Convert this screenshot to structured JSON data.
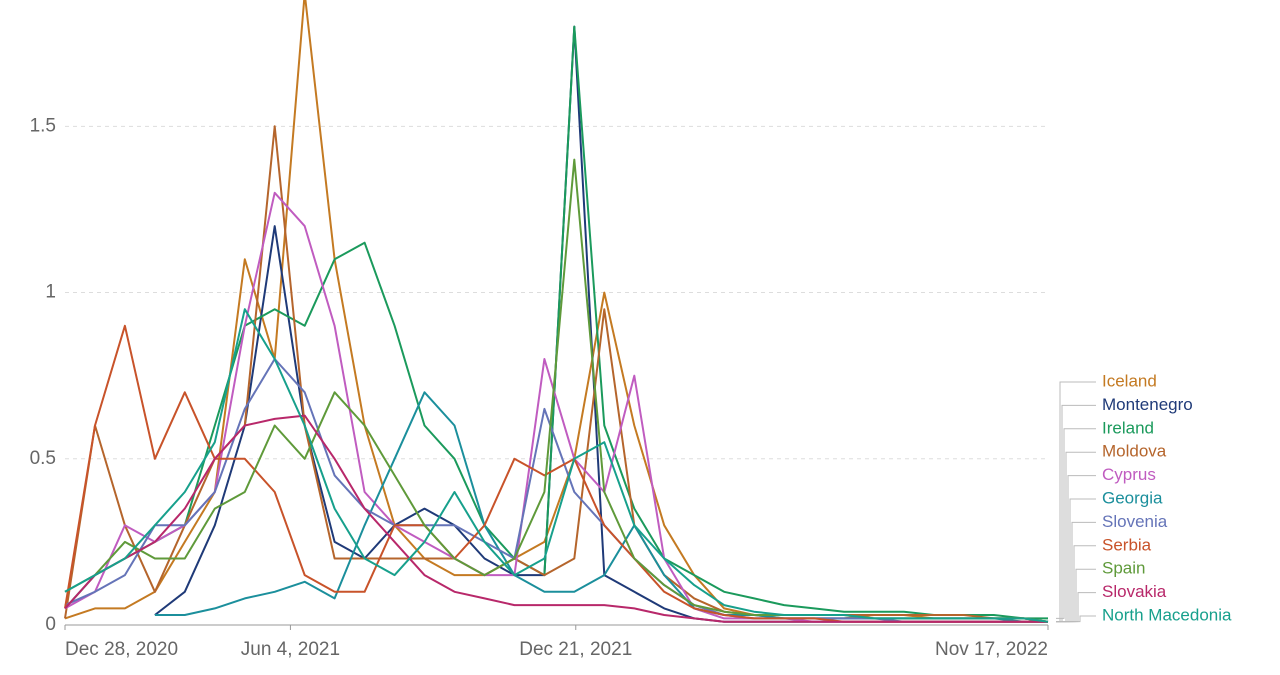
{
  "chart_data": {
    "type": "line",
    "x": [
      "2020-12-28",
      "2021-01-18",
      "2021-02-08",
      "2021-03-01",
      "2021-03-22",
      "2021-04-12",
      "2021-05-03",
      "2021-05-24",
      "2021-06-14",
      "2021-07-05",
      "2021-07-26",
      "2021-08-16",
      "2021-09-06",
      "2021-09-27",
      "2021-10-18",
      "2021-11-08",
      "2021-11-29",
      "2021-12-20",
      "2022-01-10",
      "2022-01-31",
      "2022-02-21",
      "2022-03-14",
      "2022-04-04",
      "2022-04-25",
      "2022-05-16",
      "2022-06-06",
      "2022-06-27",
      "2022-07-18",
      "2022-08-08",
      "2022-08-29",
      "2022-09-19",
      "2022-10-10",
      "2022-10-31",
      "2022-11-17"
    ],
    "xlim": [
      "2020-12-28",
      "2022-11-17"
    ],
    "xticks": [
      {
        "value": "2020-12-28",
        "label": "Dec 28, 2020"
      },
      {
        "value": "2021-06-04",
        "label": "Jun 4, 2021"
      },
      {
        "value": "2021-12-21",
        "label": "Dec 21, 2021"
      },
      {
        "value": "2022-11-17",
        "label": "Nov 17, 2022"
      }
    ],
    "ylim": [
      0,
      1.88
    ],
    "yticks": [
      0,
      0.5,
      1,
      1.5
    ],
    "grid": true,
    "series": [
      {
        "name": "Iceland",
        "color": "#c47a22",
        "values": [
          0.02,
          0.05,
          0.05,
          0.1,
          0.25,
          0.4,
          1.1,
          0.8,
          1.9,
          1.1,
          0.6,
          0.3,
          0.2,
          0.15,
          0.15,
          0.2,
          0.25,
          0.5,
          1.0,
          0.6,
          0.3,
          0.15,
          0.05,
          0.03,
          0.02,
          0.02,
          0.02,
          0.03,
          0.03,
          0.02,
          0.02,
          0.02,
          0.02,
          0.01
        ]
      },
      {
        "name": "Montenegro",
        "color": "#1f3a78",
        "values": [
          null,
          null,
          null,
          0.03,
          0.1,
          0.3,
          0.6,
          1.2,
          0.6,
          0.25,
          0.2,
          0.3,
          0.35,
          0.3,
          0.2,
          0.15,
          0.15,
          1.8,
          0.15,
          0.1,
          0.05,
          0.02,
          0.01,
          0.01,
          0.01,
          0.01,
          0.01,
          0.01,
          0.01,
          0.01,
          0.01,
          0.01,
          0.01,
          0.01
        ]
      },
      {
        "name": "Ireland",
        "color": "#1b9a5c",
        "values": [
          0.05,
          0.15,
          0.2,
          0.25,
          0.3,
          0.6,
          0.9,
          0.95,
          0.9,
          1.1,
          1.15,
          0.9,
          0.6,
          0.5,
          0.3,
          0.2,
          0.15,
          1.8,
          0.6,
          0.35,
          0.2,
          0.15,
          0.1,
          0.08,
          0.06,
          0.05,
          0.04,
          0.04,
          0.04,
          0.03,
          0.03,
          0.03,
          0.02,
          0.02
        ]
      },
      {
        "name": "Moldova",
        "color": "#b5652c",
        "values": [
          0.02,
          0.6,
          0.3,
          0.1,
          0.3,
          0.5,
          0.6,
          1.5,
          0.6,
          0.2,
          0.2,
          0.2,
          0.2,
          0.2,
          0.15,
          0.2,
          0.15,
          0.2,
          0.95,
          0.3,
          0.15,
          0.08,
          0.04,
          0.03,
          0.03,
          0.03,
          0.03,
          0.03,
          0.03,
          0.03,
          0.03,
          0.02,
          0.02,
          0.01
        ]
      },
      {
        "name": "Cyprus",
        "color": "#c05cc0",
        "values": [
          0.05,
          0.1,
          0.3,
          0.25,
          0.3,
          0.4,
          0.9,
          1.3,
          1.2,
          0.9,
          0.4,
          0.3,
          0.25,
          0.2,
          0.15,
          0.15,
          0.8,
          0.5,
          0.4,
          0.75,
          0.2,
          0.05,
          0.02,
          0.02,
          0.02,
          0.01,
          0.01,
          0.01,
          0.01,
          0.01,
          0.01,
          0.01,
          0.01,
          0.01
        ]
      },
      {
        "name": "Georgia",
        "color": "#1b8f9c",
        "values": [
          null,
          null,
          null,
          0.03,
          0.03,
          0.05,
          0.08,
          0.1,
          0.13,
          0.08,
          0.3,
          0.5,
          0.7,
          0.6,
          0.3,
          0.15,
          0.1,
          0.1,
          0.15,
          0.3,
          0.15,
          0.05,
          0.03,
          0.03,
          0.02,
          0.02,
          0.02,
          0.02,
          0.02,
          0.02,
          0.02,
          0.02,
          0.01,
          0.01
        ]
      },
      {
        "name": "Slovenia",
        "color": "#6574b8",
        "values": [
          0.06,
          0.1,
          0.15,
          0.3,
          0.3,
          0.4,
          0.65,
          0.8,
          0.7,
          0.45,
          0.35,
          0.3,
          0.3,
          0.3,
          0.25,
          0.2,
          0.65,
          0.4,
          0.3,
          0.2,
          0.12,
          0.06,
          0.03,
          0.02,
          0.02,
          0.02,
          0.02,
          0.02,
          0.01,
          0.01,
          0.01,
          0.01,
          0.01,
          0.01
        ]
      },
      {
        "name": "Serbia",
        "color": "#c8532a",
        "values": [
          0.05,
          0.6,
          0.9,
          0.5,
          0.7,
          0.5,
          0.5,
          0.4,
          0.15,
          0.1,
          0.1,
          0.3,
          0.3,
          0.2,
          0.3,
          0.5,
          0.45,
          0.5,
          0.3,
          0.2,
          0.1,
          0.05,
          0.03,
          0.02,
          0.02,
          0.02,
          0.01,
          0.01,
          0.01,
          0.01,
          0.01,
          0.01,
          0.01,
          0.01
        ]
      },
      {
        "name": "Spain",
        "color": "#5f9a3a",
        "values": [
          0.1,
          0.15,
          0.25,
          0.2,
          0.2,
          0.35,
          0.4,
          0.6,
          0.5,
          0.7,
          0.6,
          0.45,
          0.3,
          0.2,
          0.15,
          0.2,
          0.4,
          1.4,
          0.4,
          0.2,
          0.12,
          0.06,
          0.04,
          0.03,
          0.03,
          0.03,
          0.03,
          0.02,
          0.02,
          0.02,
          0.02,
          0.02,
          0.02,
          0.01
        ]
      },
      {
        "name": "Slovakia",
        "color": "#b8286a",
        "values": [
          0.05,
          0.15,
          0.2,
          0.25,
          0.35,
          0.5,
          0.6,
          0.62,
          0.63,
          0.5,
          0.35,
          0.25,
          0.15,
          0.1,
          0.08,
          0.06,
          0.06,
          0.06,
          0.06,
          0.05,
          0.03,
          0.02,
          0.01,
          0.01,
          0.01,
          0.01,
          0.01,
          0.01,
          0.01,
          0.01,
          0.01,
          0.01,
          0.01,
          0.01
        ]
      },
      {
        "name": "North Macedonia",
        "color": "#17a08c",
        "values": [
          0.1,
          0.15,
          0.2,
          0.3,
          0.4,
          0.55,
          0.95,
          0.8,
          0.6,
          0.35,
          0.2,
          0.15,
          0.25,
          0.4,
          0.25,
          0.15,
          0.2,
          0.5,
          0.55,
          0.3,
          0.2,
          0.12,
          0.06,
          0.04,
          0.03,
          0.03,
          0.03,
          0.02,
          0.02,
          0.02,
          0.02,
          0.02,
          0.02,
          0.01
        ]
      }
    ]
  }
}
